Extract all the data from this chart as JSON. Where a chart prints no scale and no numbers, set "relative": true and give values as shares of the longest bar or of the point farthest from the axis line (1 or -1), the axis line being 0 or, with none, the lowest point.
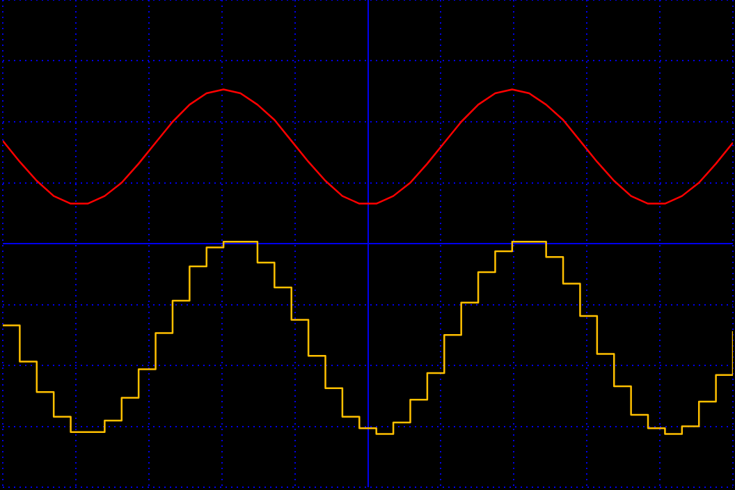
{
  "chart_data": {
    "type": "line",
    "relative": true,
    "grid": true,
    "ref_lines": [
      {
        "axis": "y",
        "value": 0,
        "color": "#0000ee"
      }
    ],
    "categories": [
      null,
      null,
      null,
      null,
      null,
      null,
      null,
      null,
      null,
      null,
      null,
      null,
      null,
      null,
      null,
      null,
      null,
      null,
      null,
      null,
      null,
      null,
      null,
      null,
      null,
      null,
      null,
      null,
      null,
      null,
      null,
      null,
      null,
      null,
      null,
      null,
      null,
      null,
      null,
      null,
      null,
      null,
      null,
      null
    ],
    "series": [
      {
        "color": "#ff0000",
        "values": [
          0.54,
          0.43,
          0.33,
          0.25,
          0.21,
          0.21,
          0.25,
          0.32,
          0.42,
          0.53,
          0.64,
          0.73,
          0.79,
          0.81,
          0.79,
          0.73,
          0.65,
          0.54,
          0.43,
          0.33,
          0.25,
          0.21,
          0.21,
          0.25,
          0.32,
          0.42,
          0.53,
          0.64,
          0.73,
          0.79,
          0.81,
          0.79,
          0.73,
          0.65,
          0.54,
          0.43,
          0.33,
          0.25,
          0.21,
          0.21,
          0.25,
          0.32,
          0.42,
          0.53
        ]
      },
      {
        "type": "step",
        "color": "#ffc000",
        "values": [
          -0.43,
          -0.62,
          -0.78,
          -0.91,
          -0.99,
          -0.99,
          -0.93,
          -0.81,
          -0.66,
          -0.47,
          -0.3,
          -0.12,
          -0.02,
          0.01,
          0.01,
          -0.1,
          -0.23,
          -0.4,
          -0.59,
          -0.76,
          -0.91,
          -0.97,
          -1.0,
          -0.94,
          -0.82,
          -0.68,
          -0.48,
          -0.31,
          -0.15,
          -0.04,
          0.01,
          0.01,
          -0.07,
          -0.21,
          -0.38,
          -0.58,
          -0.75,
          -0.9,
          -0.97,
          -1.0,
          -0.96,
          -0.83,
          -0.69,
          -0.46
        ]
      }
    ]
  }
}
